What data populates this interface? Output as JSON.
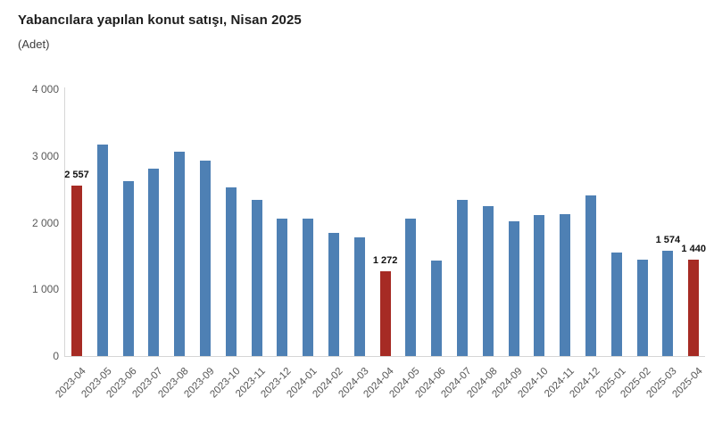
{
  "chart_data": {
    "type": "bar",
    "title": "Yabancılara yapılan konut satışı, Nisan 2025",
    "subtitle": "(Adet)",
    "categories": [
      "2023-04",
      "2023-05",
      "2023-06",
      "2023-07",
      "2023-08",
      "2023-09",
      "2023-10",
      "2023-11",
      "2023-12",
      "2024-01",
      "2024-02",
      "2024-03",
      "2024-04",
      "2024-05",
      "2024-06",
      "2024-07",
      "2024-08",
      "2024-09",
      "2024-10",
      "2024-11",
      "2024-12",
      "2025-01",
      "2025-02",
      "2025-03",
      "2025-04"
    ],
    "values": [
      2557,
      3170,
      2625,
      2805,
      3060,
      2935,
      2535,
      2335,
      2065,
      2055,
      1850,
      1780,
      1272,
      2060,
      1435,
      2345,
      2250,
      2015,
      2115,
      2130,
      2410,
      1550,
      1450,
      1574,
      1440
    ],
    "highlight_indices": [
      0,
      12,
      24
    ],
    "data_labels": {
      "0": "2 557",
      "12": "1 272",
      "23": "1 574",
      "24": "1 440"
    },
    "colors": {
      "bar": "#4E80B4",
      "highlight": "#A62B24"
    },
    "ylim": [
      0,
      4000
    ],
    "y_ticks": [
      {
        "value": 0,
        "label": "0"
      },
      {
        "value": 1000,
        "label": "1 000"
      },
      {
        "value": 2000,
        "label": "2 000"
      },
      {
        "value": 3000,
        "label": "3 000"
      },
      {
        "value": 4000,
        "label": "4 000"
      }
    ],
    "grid": false,
    "legend": false,
    "xlabel": "",
    "ylabel": ""
  }
}
